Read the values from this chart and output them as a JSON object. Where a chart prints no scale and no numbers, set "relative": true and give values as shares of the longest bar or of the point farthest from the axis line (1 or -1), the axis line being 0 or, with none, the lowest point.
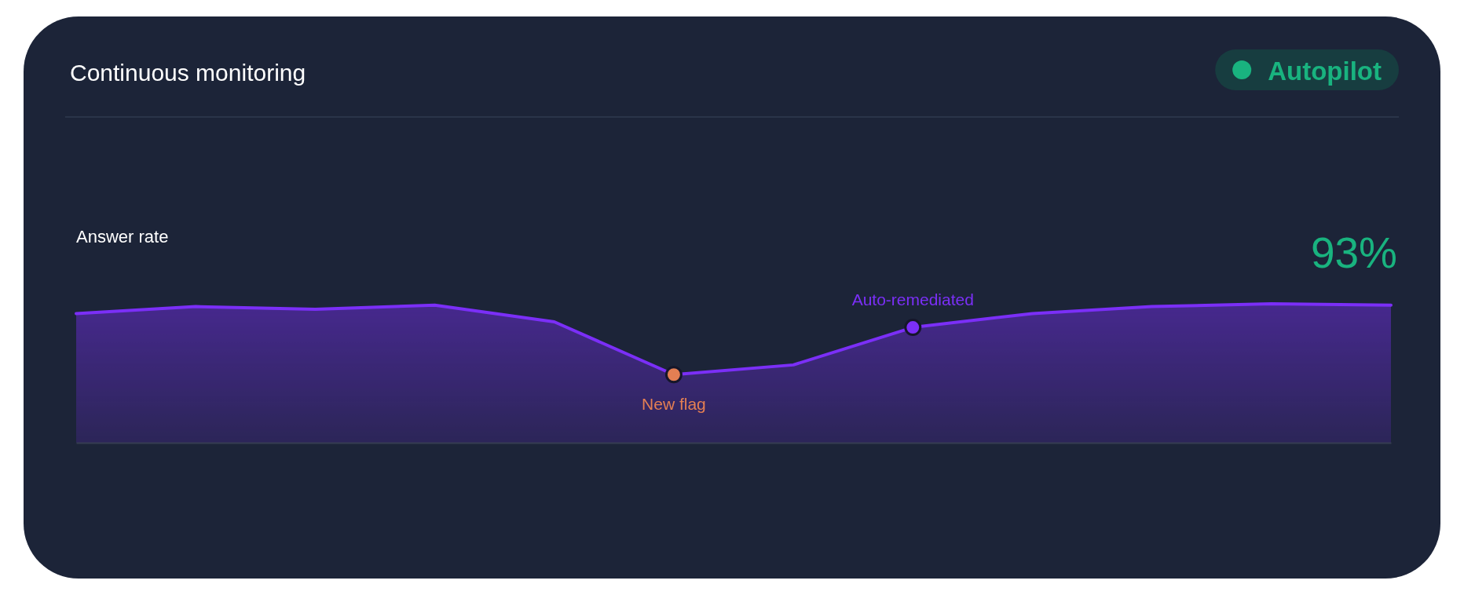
{
  "chart_data": {
    "type": "area",
    "title": "Continuous monitoring",
    "subtitle": "Answer rate",
    "annotations": [
      "Autopilot",
      "93%"
    ],
    "relative": true,
    "tick_labels": false,
    "categories": [
      null,
      null,
      null,
      null,
      null,
      null,
      null,
      null,
      null,
      null,
      null,
      null
    ],
    "series": [
      {
        "color": "#7b2ff7",
        "values": [
          0.93,
          0.98,
          0.96,
          0.99,
          0.87,
          0.49,
          0.56,
          0.83,
          0.93,
          0.98,
          1,
          0.99
        ]
      },
      {
        "type": "line",
        "name": "New flag",
        "color": "#e47f53",
        "marker": "circle",
        "values": [
          null,
          null,
          null,
          null,
          null,
          0.49,
          null,
          null,
          null,
          null,
          null,
          null
        ]
      },
      {
        "type": "line",
        "name": "Auto-remediated",
        "color": "#7b2ff7",
        "marker": "circle",
        "values": [
          null,
          null,
          null,
          null,
          null,
          null,
          null,
          0.83,
          null,
          null,
          null,
          null
        ]
      }
    ]
  }
}
